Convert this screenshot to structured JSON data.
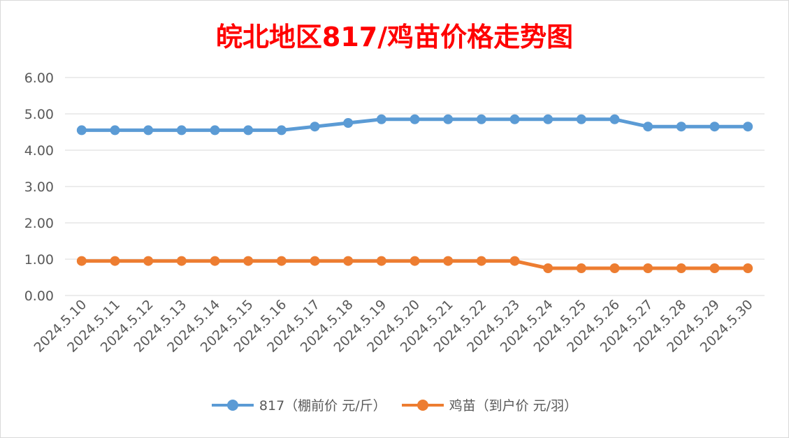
{
  "chart_data": {
    "type": "line",
    "title": "皖北地区817/鸡苗价格走势图",
    "categories": [
      "2024.5.10",
      "2024.5.11",
      "2024.5.12",
      "2024.5.13",
      "2024.5.14",
      "2024.5.15",
      "2024.5.16",
      "2024.5.17",
      "2024.5.18",
      "2024.5.19",
      "2024.5.20",
      "2024.5.21",
      "2024.5.22",
      "2024.5.23",
      "2024.5.24",
      "2024.5.25",
      "2024.5.26",
      "2024.5.27",
      "2024.5.28",
      "2024.5.29",
      "2024.5.30"
    ],
    "series": [
      {
        "name": "817（棚前价 元/斤）",
        "color": "#5b9bd5",
        "values": [
          4.55,
          4.55,
          4.55,
          4.55,
          4.55,
          4.55,
          4.55,
          4.65,
          4.75,
          4.85,
          4.85,
          4.85,
          4.85,
          4.85,
          4.85,
          4.85,
          4.85,
          4.65,
          4.65,
          4.65,
          4.65
        ]
      },
      {
        "name": "鸡苗（到户价 元/羽）",
        "color": "#ed7d31",
        "values": [
          0.95,
          0.95,
          0.95,
          0.95,
          0.95,
          0.95,
          0.95,
          0.95,
          0.95,
          0.95,
          0.95,
          0.95,
          0.95,
          0.95,
          0.75,
          0.75,
          0.75,
          0.75,
          0.75,
          0.75,
          0.75
        ]
      }
    ],
    "yticks": [
      "0.00",
      "1.00",
      "2.00",
      "3.00",
      "4.00",
      "5.00",
      "6.00"
    ],
    "ylim": [
      0,
      6
    ],
    "grid": true,
    "legend_position": "bottom",
    "title_color": "#ff0000"
  }
}
